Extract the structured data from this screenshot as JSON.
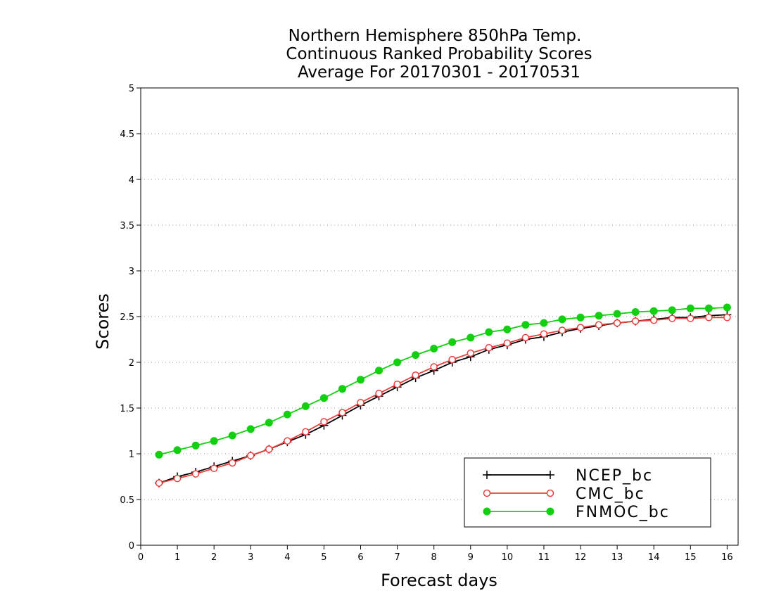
{
  "chart_data": {
    "type": "line",
    "title": [
      "Northern Hemisphere 850hPa Temp.",
      "Continuous Ranked Probability Scores",
      "Average For 20170301 - 20170531"
    ],
    "xlabel": "Forecast days",
    "ylabel": "Scores",
    "xlim": [
      0,
      16.3
    ],
    "ylim": [
      0,
      5
    ],
    "xticks": [
      0,
      1,
      2,
      3,
      4,
      5,
      6,
      7,
      8,
      9,
      10,
      11,
      12,
      13,
      14,
      15,
      16
    ],
    "yticks": [
      0,
      0.5,
      1,
      1.5,
      2,
      2.5,
      3,
      3.5,
      4,
      4.5,
      5
    ],
    "ytick_labels": [
      "0",
      "0.5",
      "1",
      "1.5",
      "2",
      "2.5",
      "3",
      "3.5",
      "4",
      "4.5",
      "5"
    ],
    "grid": true,
    "legend_position": "bottom-right",
    "x": [
      0.5,
      1,
      1.5,
      2,
      2.5,
      3,
      3.5,
      4,
      4.5,
      5,
      5.5,
      6,
      6.5,
      7,
      7.5,
      8,
      8.5,
      9,
      9.5,
      10,
      10.5,
      11,
      11.5,
      12,
      12.5,
      13,
      13.5,
      14,
      14.5,
      15,
      15.5,
      16
    ],
    "series": [
      {
        "name": "NCEP_bc",
        "color": "#000000",
        "marker": "plus",
        "values": [
          0.68,
          0.75,
          0.8,
          0.86,
          0.92,
          0.98,
          1.05,
          1.13,
          1.21,
          1.31,
          1.42,
          1.53,
          1.63,
          1.73,
          1.83,
          1.91,
          2.0,
          2.06,
          2.14,
          2.19,
          2.25,
          2.28,
          2.33,
          2.37,
          2.4,
          2.43,
          2.45,
          2.47,
          2.49,
          2.49,
          2.51,
          2.52
        ]
      },
      {
        "name": "CMC_bc",
        "color": "#e8403e",
        "marker": "open-circle",
        "values": [
          0.68,
          0.73,
          0.78,
          0.84,
          0.9,
          0.98,
          1.05,
          1.14,
          1.24,
          1.35,
          1.45,
          1.56,
          1.66,
          1.76,
          1.86,
          1.95,
          2.03,
          2.1,
          2.16,
          2.21,
          2.27,
          2.31,
          2.35,
          2.38,
          2.41,
          2.43,
          2.45,
          2.46,
          2.48,
          2.48,
          2.49,
          2.49
        ]
      },
      {
        "name": "FNMOC_bc",
        "color": "#10d010",
        "marker": "filled-circle",
        "values": [
          0.99,
          1.04,
          1.09,
          1.14,
          1.2,
          1.27,
          1.34,
          1.43,
          1.52,
          1.61,
          1.71,
          1.81,
          1.91,
          2.0,
          2.08,
          2.15,
          2.22,
          2.27,
          2.33,
          2.36,
          2.41,
          2.43,
          2.47,
          2.49,
          2.51,
          2.53,
          2.55,
          2.56,
          2.57,
          2.59,
          2.59,
          2.6
        ]
      }
    ]
  }
}
